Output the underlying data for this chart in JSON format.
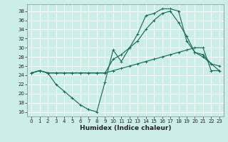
{
  "xlabel": "Humidex (Indice chaleur)",
  "bg_color": "#cceee8",
  "grid_color": "#ffffff",
  "line_color": "#1a6b5a",
  "xlim": [
    -0.5,
    23.5
  ],
  "ylim": [
    15,
    39.5
  ],
  "yticks": [
    16,
    18,
    20,
    22,
    24,
    26,
    28,
    30,
    32,
    34,
    36,
    38
  ],
  "xticks": [
    0,
    1,
    2,
    3,
    4,
    5,
    6,
    7,
    8,
    9,
    10,
    11,
    12,
    13,
    14,
    15,
    16,
    17,
    18,
    19,
    20,
    21,
    22,
    23
  ],
  "curve1_x": [
    0,
    1,
    2,
    3,
    4,
    5,
    6,
    7,
    8,
    9,
    10,
    11,
    12,
    13,
    14,
    15,
    16,
    17,
    18,
    19,
    20,
    21,
    22,
    23
  ],
  "curve1_y": [
    24.5,
    25.0,
    24.5,
    24.5,
    24.5,
    24.5,
    24.5,
    24.5,
    24.5,
    24.5,
    25.0,
    25.5,
    26.0,
    26.5,
    27.0,
    27.5,
    28.0,
    28.5,
    29.0,
    29.5,
    30.0,
    30.0,
    25.0,
    25.0
  ],
  "curve2_x": [
    0,
    1,
    2,
    3,
    4,
    5,
    6,
    7,
    8,
    9,
    10,
    11,
    12,
    13,
    14,
    15,
    16,
    17,
    18,
    19,
    20,
    21,
    22,
    23
  ],
  "curve2_y": [
    24.5,
    25.0,
    24.5,
    22.0,
    20.5,
    19.0,
    17.5,
    16.5,
    16.0,
    22.5,
    29.5,
    27.0,
    30.0,
    33.0,
    37.0,
    37.5,
    38.5,
    38.5,
    38.0,
    31.5,
    29.0,
    28.0,
    26.5,
    26.0
  ],
  "curve3_x": [
    0,
    1,
    2,
    3,
    4,
    5,
    6,
    7,
    8,
    9,
    10,
    11,
    12,
    13,
    14,
    15,
    16,
    17,
    18,
    19,
    20,
    21,
    22,
    23
  ],
  "curve3_y": [
    24.5,
    25.0,
    24.5,
    24.5,
    24.5,
    24.5,
    24.5,
    24.5,
    24.5,
    24.5,
    27.5,
    28.5,
    30.0,
    31.5,
    34.0,
    36.0,
    37.5,
    38.0,
    35.5,
    32.5,
    29.0,
    28.5,
    26.5,
    25.0
  ],
  "tick_fontsize": 5.0,
  "xlabel_fontsize": 6.5
}
